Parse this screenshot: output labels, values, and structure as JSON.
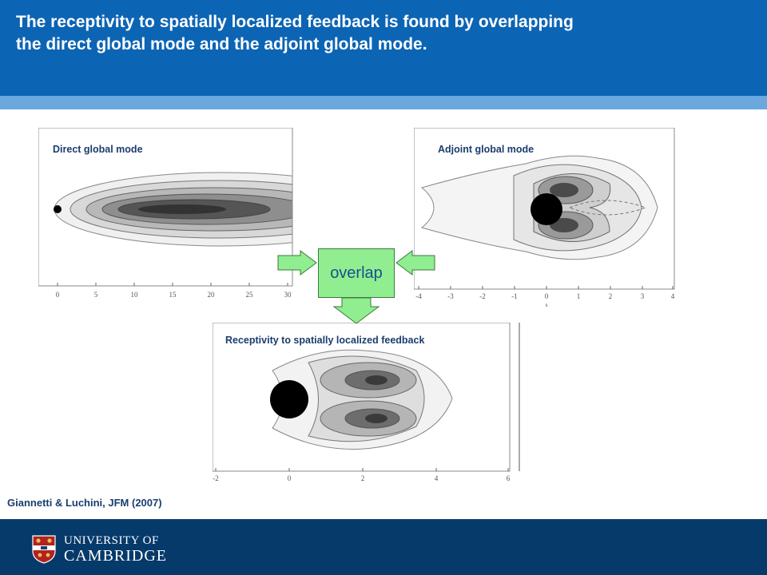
{
  "slide": {
    "title_line1": "The receptivity to spatially localized feedback is found by overlapping",
    "title_line2": "the direct global mode and the adjoint global mode."
  },
  "panels": {
    "direct": {
      "label": "Direct global mode",
      "x_ticks": [
        "0",
        "5",
        "10",
        "15",
        "20",
        "25",
        "30"
      ]
    },
    "adjoint": {
      "label": "Adjoint global mode",
      "x_ticks": [
        "-4",
        "-3",
        "-2",
        "-1",
        "0",
        "1",
        "2",
        "3",
        "4"
      ],
      "x_axis_label": "x"
    },
    "receptivity": {
      "label": "Receptivity to spatially localized feedback",
      "x_ticks": [
        "-2",
        "0",
        "2",
        "4",
        "6"
      ]
    }
  },
  "overlap": {
    "label": "overlap",
    "color": "#90ee90"
  },
  "citation": "Giannetti & Luchini, JFM (2007)",
  "footer": {
    "logo_line1": "UNIVERSITY OF",
    "logo_line2": "CAMBRIDGE",
    "crest_icon": "cambridge-crest-icon"
  },
  "colors": {
    "header": "#0c64b4",
    "header_strip": "#6aa8de",
    "footer": "#063a6a",
    "label_text": "#1a3d6e"
  }
}
